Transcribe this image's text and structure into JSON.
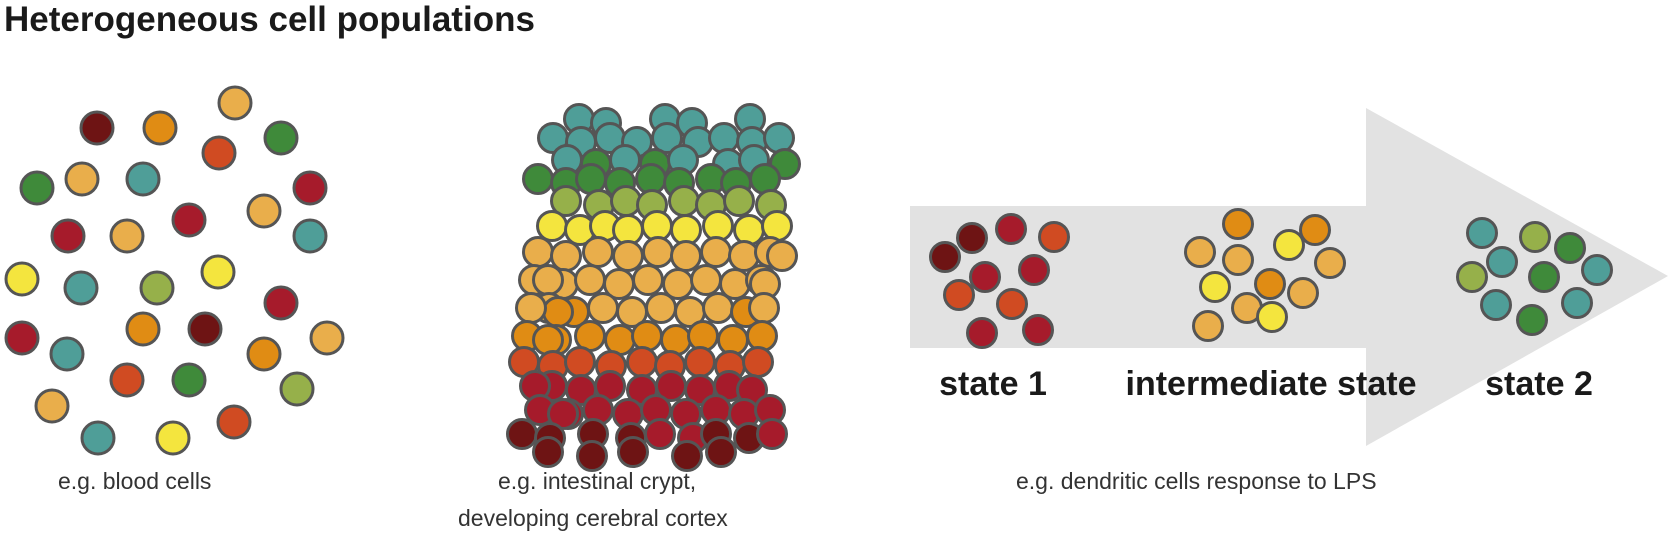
{
  "title": "Heterogeneous cell populations",
  "colors": {
    "dark_red": "#6e1414",
    "red": "#a61b2b",
    "red_orange": "#d04b22",
    "orange": "#e08c14",
    "light_orange": "#e9ae4b",
    "yellow": "#f4e53e",
    "yellow_green": "#96b04a",
    "green": "#3f8a3a",
    "teal": "#4f9e98",
    "cell_outline": "#555555",
    "arrow": "#e2e2e2"
  },
  "panels": {
    "blood": {
      "caption": "e.g. blood cells"
    },
    "crypt": {
      "caption_line1": "e.g. intestinal crypt,",
      "caption_line2": "developing cerebral cortex"
    },
    "dendritic": {
      "caption": "e.g. dendritic cells response to LPS",
      "states": [
        "state 1",
        "intermediate state",
        "state 2"
      ]
    }
  }
}
